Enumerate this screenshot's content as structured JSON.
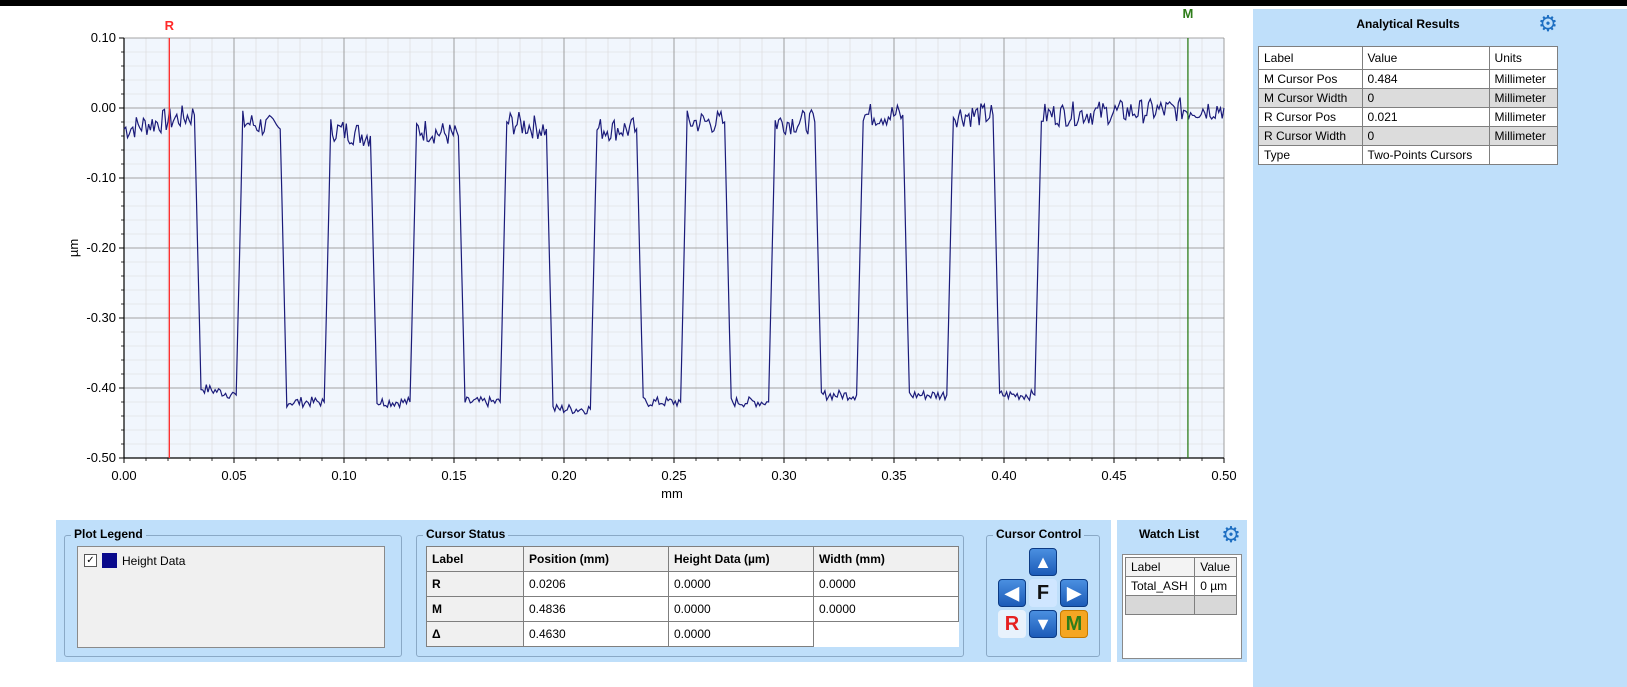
{
  "chart_data": {
    "type": "line",
    "title": "",
    "xlabel": "mm",
    "ylabel": "µm",
    "xlim": [
      0,
      0.5
    ],
    "ylim": [
      -0.5,
      0.1
    ],
    "x_ticks": [
      "0.00",
      "0.05",
      "0.10",
      "0.15",
      "0.20",
      "0.25",
      "0.30",
      "0.35",
      "0.40",
      "0.45",
      "0.50"
    ],
    "y_ticks": [
      "0.10",
      "0.00",
      "-0.10",
      "-0.20",
      "-0.30",
      "-0.40",
      "-0.50"
    ],
    "grid": true,
    "series": [
      {
        "name": "Height Data",
        "color": "#1b1b7a",
        "high_level": -0.02,
        "low_level": -0.415,
        "points": [
          [
            0.0,
            -0.03
          ],
          [
            0.032,
            -0.01
          ],
          [
            0.035,
            -0.4
          ],
          [
            0.051,
            -0.41
          ],
          [
            0.054,
            -0.02
          ],
          [
            0.071,
            -0.03
          ],
          [
            0.074,
            -0.42
          ],
          [
            0.091,
            -0.42
          ],
          [
            0.094,
            -0.03
          ],
          [
            0.112,
            -0.04
          ],
          [
            0.115,
            -0.42
          ],
          [
            0.13,
            -0.42
          ],
          [
            0.133,
            -0.03
          ],
          [
            0.152,
            -0.04
          ],
          [
            0.155,
            -0.42
          ],
          [
            0.171,
            -0.42
          ],
          [
            0.174,
            -0.02
          ],
          [
            0.192,
            -0.03
          ],
          [
            0.195,
            -0.43
          ],
          [
            0.212,
            -0.43
          ],
          [
            0.215,
            -0.03
          ],
          [
            0.233,
            -0.03
          ],
          [
            0.236,
            -0.42
          ],
          [
            0.253,
            -0.42
          ],
          [
            0.256,
            -0.02
          ],
          [
            0.273,
            -0.02
          ],
          [
            0.276,
            -0.42
          ],
          [
            0.293,
            -0.42
          ],
          [
            0.296,
            -0.02
          ],
          [
            0.314,
            -0.02
          ],
          [
            0.317,
            -0.41
          ],
          [
            0.333,
            -0.41
          ],
          [
            0.336,
            -0.01
          ],
          [
            0.354,
            -0.01
          ],
          [
            0.357,
            -0.41
          ],
          [
            0.374,
            -0.41
          ],
          [
            0.377,
            -0.01
          ],
          [
            0.395,
            -0.01
          ],
          [
            0.398,
            -0.41
          ],
          [
            0.414,
            -0.41
          ],
          [
            0.417,
            -0.01
          ],
          [
            0.5,
            0.0
          ]
        ]
      }
    ],
    "cursors": [
      {
        "label": "R",
        "x": 0.0206,
        "color": "#ff2a2a"
      },
      {
        "label": "M",
        "x": 0.4836,
        "color": "#2e7d1a"
      }
    ]
  },
  "analytical_results": {
    "title": "Analytical Results",
    "columns": [
      "Label",
      "Value",
      "Units"
    ],
    "rows": [
      [
        "M Cursor Pos",
        "0.484",
        "Millimeter"
      ],
      [
        "M Cursor Width",
        "0",
        "Millimeter"
      ],
      [
        "R Cursor Pos",
        "0.021",
        "Millimeter"
      ],
      [
        "R Cursor Width",
        "0",
        "Millimeter"
      ],
      [
        "Type",
        "Two-Points Cursors",
        ""
      ]
    ],
    "settings_icon": "gears-icon"
  },
  "plot_legend": {
    "title": "Plot Legend",
    "item_label": "Height Data",
    "item_color": "#0a0a8c",
    "checked": true
  },
  "cursor_status": {
    "title": "Cursor Status",
    "columns": [
      "Label",
      "Position (mm)",
      "Height Data (µm)",
      "Width (mm)"
    ],
    "rows": [
      [
        "R",
        "0.0206",
        "0.0000",
        "0.0000"
      ],
      [
        "M",
        "0.4836",
        "0.0000",
        "0.0000"
      ],
      [
        "Δ",
        "0.4630",
        "0.0000",
        ""
      ]
    ]
  },
  "cursor_control": {
    "title": "Cursor Control",
    "f_label": "F",
    "r_label": "R",
    "m_label": "M"
  },
  "watch_list": {
    "title": "Watch List",
    "columns": [
      "Label",
      "Value"
    ],
    "rows": [
      [
        "Total_ASH",
        "0 µm"
      ]
    ]
  }
}
